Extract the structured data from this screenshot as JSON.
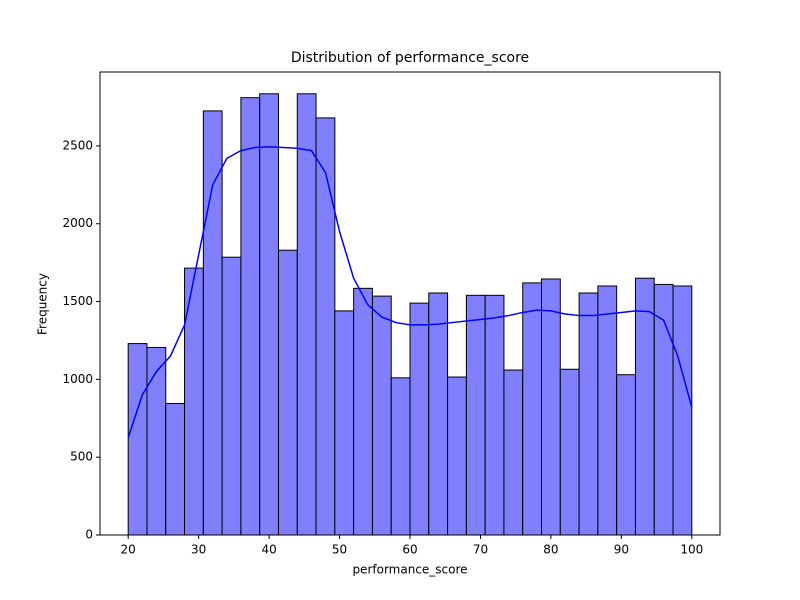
{
  "chart_data": {
    "type": "histogram",
    "title": "Distribution of performance_score",
    "x_label": "performance_score",
    "y_label": "Frequency",
    "bins": [
      20,
      22.667,
      25.333,
      28,
      30.667,
      33.333,
      36,
      38.667,
      41.333,
      44,
      46.667,
      49.333,
      52,
      54.667,
      57.333,
      60,
      62.667,
      65.333,
      68,
      70.667,
      73.333,
      76,
      78.667,
      81.333,
      84,
      86.667,
      89.333,
      92,
      94.667,
      97.333,
      100
    ],
    "values": [
      1230,
      1205,
      845,
      1715,
      2725,
      1785,
      2810,
      2835,
      1830,
      2835,
      2680,
      1440,
      1585,
      1535,
      1010,
      1490,
      1555,
      1015,
      1540,
      1540,
      1060,
      1620,
      1645,
      1065,
      1555,
      1600,
      1030,
      1650,
      1610,
      1600
    ],
    "color": "#8080ff",
    "kde": {
      "color": "#0000ff",
      "x": [
        20,
        22,
        24,
        26,
        28,
        30,
        32,
        34,
        36,
        38,
        40,
        42,
        44,
        46,
        48,
        50,
        52,
        54,
        56,
        58,
        60,
        62,
        64,
        66,
        68,
        70,
        72,
        74,
        76,
        78,
        80,
        82,
        84,
        86,
        88,
        90,
        92,
        94,
        96,
        98,
        100
      ],
      "values": [
        625,
        900,
        1050,
        1150,
        1350,
        1800,
        2250,
        2420,
        2470,
        2490,
        2495,
        2490,
        2485,
        2470,
        2330,
        1950,
        1650,
        1480,
        1400,
        1365,
        1350,
        1350,
        1355,
        1365,
        1375,
        1385,
        1395,
        1410,
        1430,
        1445,
        1440,
        1420,
        1410,
        1410,
        1420,
        1430,
        1440,
        1435,
        1380,
        1150,
        820
      ]
    },
    "xlim": [
      16,
      104
    ],
    "ylim": [
      0,
      2975
    ],
    "xticks": [
      20,
      30,
      40,
      50,
      60,
      70,
      80,
      90,
      100
    ],
    "yticks": [
      0,
      500,
      1000,
      1500,
      2000,
      2500
    ],
    "grid": false
  }
}
